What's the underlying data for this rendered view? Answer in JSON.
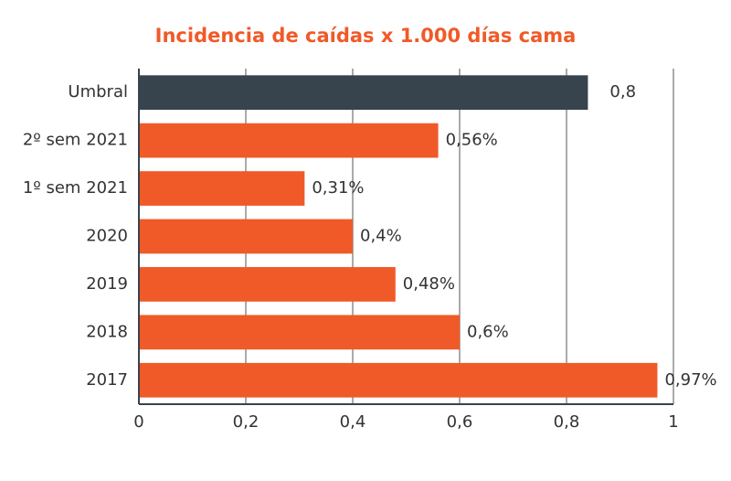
{
  "chart_data": {
    "type": "bar",
    "orientation": "horizontal",
    "title": "Incidencia de caídas x 1.000 días cama",
    "categories": [
      "Umbral",
      "2º sem 2021",
      "1º sem 2021",
      "2020",
      "2019",
      "2018",
      "2017"
    ],
    "values": [
      0.84,
      0.56,
      0.31,
      0.4,
      0.48,
      0.6,
      0.97
    ],
    "value_labels": [
      "0,8",
      "0,56%",
      "0,31%",
      "0,4%",
      "0,48%",
      "0,6%",
      "0,97%"
    ],
    "colors": [
      "#37434d",
      "#f05a28",
      "#f05a28",
      "#f05a28",
      "#f05a28",
      "#f05a28",
      "#f05a28"
    ],
    "xlim": [
      0,
      1
    ],
    "xticks": [
      0,
      {
        "value": 0.2,
        "label": "0,2"
      },
      {
        "value": 0.4,
        "label": "0,4"
      },
      {
        "value": 0.6,
        "label": "0,6"
      },
      {
        "value": 0.8,
        "label": "0,8"
      },
      1
    ],
    "grid": true
  }
}
